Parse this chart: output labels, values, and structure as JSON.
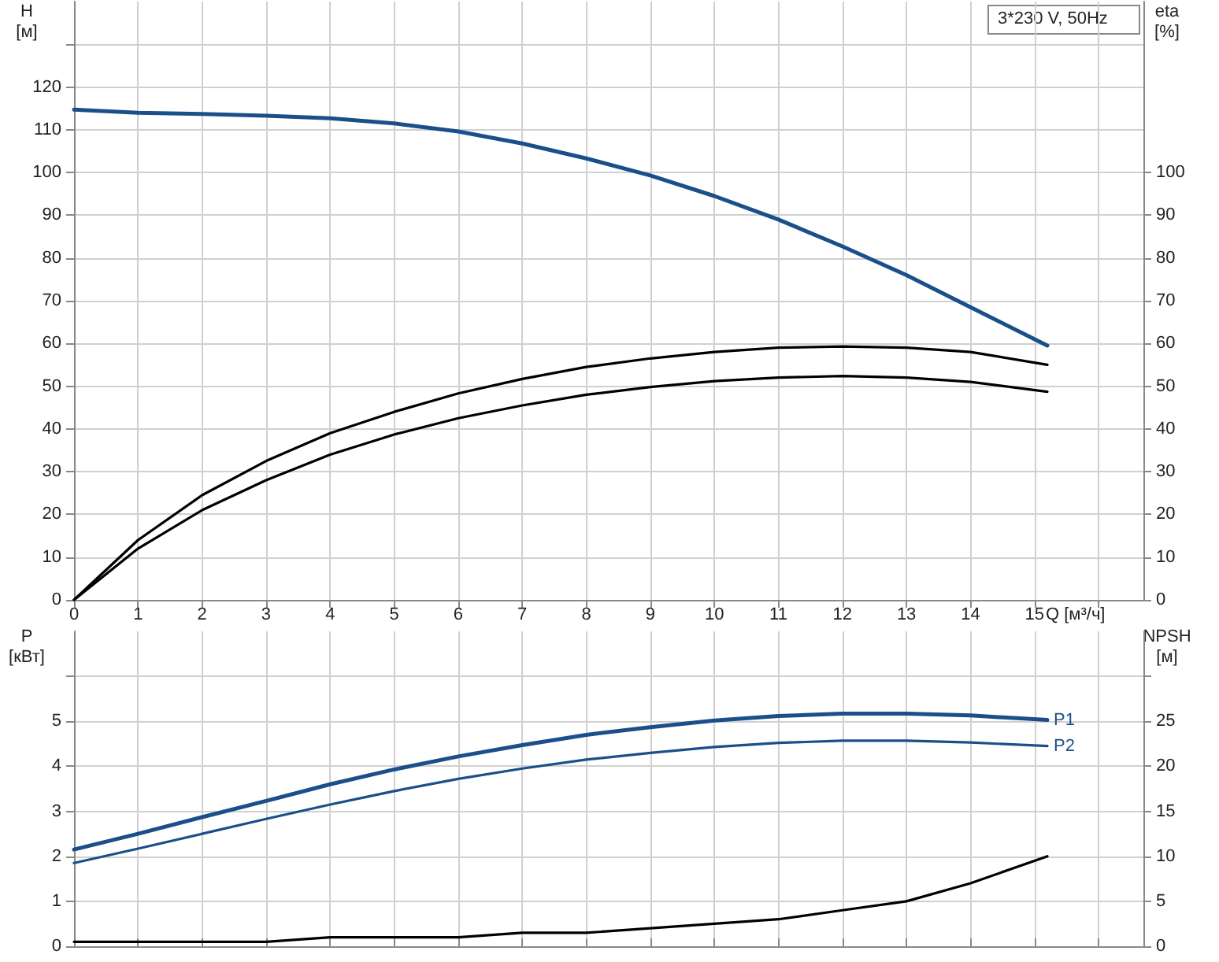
{
  "chart_data": [
    {
      "type": "line",
      "xlabel": "Q [м³/ч]",
      "ylabel": "H [м]",
      "y2label": "eta [%]",
      "annotations": [
        "3*230 V, 50Hz"
      ],
      "x": [
        0,
        1,
        2,
        3,
        4,
        5,
        6,
        7,
        8,
        9,
        10,
        11,
        12,
        13,
        14,
        15.2
      ],
      "series": [
        {
          "color": "#1a4f8a",
          "values": [
            114.7,
            114,
            113.7,
            113.3,
            112.7,
            111.5,
            109.6,
            106.8,
            103.3,
            99.3,
            94.5,
            89,
            82.7,
            76,
            68.5,
            59.5
          ]
        },
        {
          "color": "#000000",
          "axis": "y2",
          "values": [
            0,
            14,
            24.5,
            32.5,
            39,
            44,
            48.3,
            51.7,
            54.5,
            56.5,
            58,
            59,
            59.3,
            59,
            58,
            55
          ]
        },
        {
          "color": "#000000",
          "axis": "y2",
          "values": [
            0,
            12,
            21,
            28,
            34,
            38.7,
            42.5,
            45.5,
            48,
            49.8,
            51.2,
            52,
            52.4,
            52,
            51,
            48.7
          ]
        }
      ],
      "xlim": [
        0,
        16.7
      ],
      "xticks": [
        0,
        1,
        2,
        3,
        4,
        5,
        6,
        7,
        8,
        9,
        10,
        11,
        12,
        13,
        14,
        15,
        {
          "value": 16,
          "label": null
        }
      ],
      "ylim": [
        0,
        140
      ],
      "yticks": [
        0,
        10,
        20,
        30,
        40,
        50,
        60,
        70,
        80,
        90,
        100,
        110,
        120,
        {
          "value": 130,
          "label": null
        }
      ],
      "y2lim": [
        0,
        140
      ],
      "y2ticks": [
        0,
        10,
        20,
        30,
        40,
        50,
        60,
        70,
        80,
        90,
        100
      ],
      "grid": true,
      "legend": false,
      "marker": "none",
      "line_style": "solid"
    },
    {
      "type": "line",
      "ylabel": "P [кВт]",
      "y2label": "NPSH [м]",
      "tick_labels": "y",
      "x": [
        0,
        1,
        2,
        3,
        4,
        5,
        6,
        7,
        8,
        9,
        10,
        11,
        12,
        13,
        14,
        15.2
      ],
      "series": [
        {
          "name": "P1",
          "color": "#1a4f8a",
          "values": [
            2.15,
            2.5,
            2.87,
            3.23,
            3.6,
            3.93,
            4.22,
            4.47,
            4.7,
            4.87,
            5.02,
            5.12,
            5.17,
            5.17,
            5.13,
            5.03
          ]
        },
        {
          "name": "P2",
          "color": "#1a4f8a",
          "values": [
            1.85,
            2.17,
            2.5,
            2.83,
            3.15,
            3.45,
            3.72,
            3.95,
            4.15,
            4.3,
            4.43,
            4.52,
            4.57,
            4.57,
            4.53,
            4.45
          ]
        },
        {
          "color": "#000000",
          "axis": "y2",
          "values": [
            0.5,
            0.5,
            0.5,
            0.5,
            1,
            1,
            1,
            1.5,
            1.5,
            2,
            2.5,
            3,
            4,
            5,
            7,
            10
          ]
        }
      ],
      "xlim": [
        0,
        16.7
      ],
      "xticks": [
        0,
        1,
        2,
        3,
        4,
        5,
        6,
        7,
        8,
        9,
        10,
        11,
        12,
        13,
        14,
        15,
        {
          "value": 16,
          "label": null
        }
      ],
      "ylim": [
        0,
        7
      ],
      "yticks": [
        0,
        1,
        2,
        3,
        4,
        5,
        {
          "value": 6,
          "label": null
        }
      ],
      "y2lim": [
        0,
        35
      ],
      "y2ticks": [
        0,
        5,
        10,
        15,
        20,
        25,
        {
          "value": 30,
          "label": null
        }
      ],
      "grid": true,
      "legend": false,
      "marker": "none",
      "line_style": "solid"
    }
  ]
}
